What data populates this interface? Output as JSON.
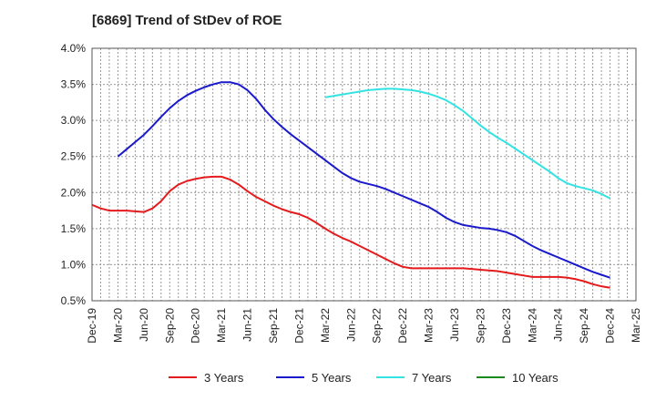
{
  "chart_data": {
    "type": "line",
    "title": "[6869]  Trend of StDev of ROE",
    "y_ticks": [
      "0.5%",
      "1.0%",
      "1.5%",
      "2.0%",
      "2.5%",
      "3.0%",
      "3.5%",
      "4.0%"
    ],
    "ylim": [
      0.5,
      4.0
    ],
    "x_ticks": [
      "Dec-19",
      "Mar-20",
      "Jun-20",
      "Sep-20",
      "Dec-20",
      "Mar-21",
      "Jun-21",
      "Sep-21",
      "Dec-21",
      "Mar-22",
      "Jun-22",
      "Sep-22",
      "Dec-22",
      "Mar-23",
      "Jun-23",
      "Sep-23",
      "Dec-23",
      "Mar-24",
      "Jun-24",
      "Sep-24",
      "Dec-24",
      "Mar-25"
    ],
    "grid": true,
    "legend_position": "bottom",
    "series": [
      {
        "name": "3 Years",
        "color": "#e41a1c",
        "x": [
          "Dec-19",
          "Jan-20",
          "Feb-20",
          "Mar-20",
          "Apr-20",
          "May-20",
          "Jun-20",
          "Jul-20",
          "Aug-20",
          "Sep-20",
          "Oct-20",
          "Nov-20",
          "Dec-20",
          "Jan-21",
          "Feb-21",
          "Mar-21",
          "Apr-21",
          "May-21",
          "Jun-21",
          "Jul-21",
          "Aug-21",
          "Sep-21",
          "Oct-21",
          "Nov-21",
          "Dec-21",
          "Jan-22",
          "Feb-22",
          "Mar-22",
          "Apr-22",
          "May-22",
          "Jun-22",
          "Jul-22",
          "Aug-22",
          "Sep-22",
          "Oct-22",
          "Nov-22",
          "Dec-22",
          "Jan-23",
          "Feb-23",
          "Mar-23",
          "Apr-23",
          "May-23",
          "Jun-23",
          "Jul-23",
          "Aug-23",
          "Sep-23",
          "Oct-23",
          "Nov-23",
          "Dec-23",
          "Jan-24",
          "Feb-24",
          "Mar-24",
          "Apr-24",
          "May-24",
          "Jun-24",
          "Jul-24",
          "Aug-24",
          "Sep-24",
          "Oct-24",
          "Nov-24",
          "Dec-24"
        ],
        "values": [
          1.83,
          1.78,
          1.75,
          1.75,
          1.75,
          1.74,
          1.73,
          1.78,
          1.88,
          2.02,
          2.11,
          2.16,
          2.19,
          2.21,
          2.22,
          2.22,
          2.18,
          2.11,
          2.02,
          1.94,
          1.88,
          1.82,
          1.77,
          1.73,
          1.7,
          1.65,
          1.58,
          1.5,
          1.43,
          1.37,
          1.32,
          1.26,
          1.2,
          1.14,
          1.08,
          1.02,
          0.97,
          0.95,
          0.95,
          0.95,
          0.95,
          0.95,
          0.95,
          0.95,
          0.94,
          0.93,
          0.92,
          0.91,
          0.89,
          0.87,
          0.85,
          0.83,
          0.83,
          0.83,
          0.83,
          0.82,
          0.8,
          0.77,
          0.73,
          0.7,
          0.68
        ]
      },
      {
        "name": "5 Years",
        "color": "#1a1acc",
        "x": [
          "Mar-20",
          "Apr-20",
          "May-20",
          "Jun-20",
          "Jul-20",
          "Aug-20",
          "Sep-20",
          "Oct-20",
          "Nov-20",
          "Dec-20",
          "Jan-21",
          "Feb-21",
          "Mar-21",
          "Apr-21",
          "May-21",
          "Jun-21",
          "Jul-21",
          "Aug-21",
          "Sep-21",
          "Oct-21",
          "Nov-21",
          "Dec-21",
          "Jan-22",
          "Feb-22",
          "Mar-22",
          "Apr-22",
          "May-22",
          "Jun-22",
          "Jul-22",
          "Aug-22",
          "Sep-22",
          "Oct-22",
          "Nov-22",
          "Dec-22",
          "Jan-23",
          "Feb-23",
          "Mar-23",
          "Apr-23",
          "May-23",
          "Jun-23",
          "Jul-23",
          "Aug-23",
          "Sep-23",
          "Oct-23",
          "Nov-23",
          "Dec-23",
          "Jan-24",
          "Feb-24",
          "Mar-24",
          "Apr-24",
          "May-24",
          "Jun-24",
          "Jul-24",
          "Aug-24",
          "Sep-24",
          "Oct-24",
          "Nov-24",
          "Dec-24"
        ],
        "values": [
          2.5,
          2.6,
          2.7,
          2.8,
          2.92,
          3.05,
          3.17,
          3.27,
          3.35,
          3.41,
          3.46,
          3.5,
          3.53,
          3.53,
          3.5,
          3.42,
          3.3,
          3.15,
          3.02,
          2.91,
          2.81,
          2.72,
          2.63,
          2.54,
          2.45,
          2.36,
          2.27,
          2.2,
          2.15,
          2.12,
          2.09,
          2.05,
          2.0,
          1.95,
          1.9,
          1.85,
          1.8,
          1.73,
          1.65,
          1.59,
          1.55,
          1.53,
          1.51,
          1.5,
          1.48,
          1.45,
          1.4,
          1.33,
          1.26,
          1.2,
          1.15,
          1.1,
          1.05,
          1.0,
          0.95,
          0.9,
          0.86,
          0.82
        ]
      },
      {
        "name": "7 Years",
        "color": "#33e3e3",
        "x": [
          "Mar-22",
          "Apr-22",
          "May-22",
          "Jun-22",
          "Jul-22",
          "Aug-22",
          "Sep-22",
          "Oct-22",
          "Nov-22",
          "Dec-22",
          "Jan-23",
          "Feb-23",
          "Mar-23",
          "Apr-23",
          "May-23",
          "Jun-23",
          "Jul-23",
          "Aug-23",
          "Sep-23",
          "Oct-23",
          "Nov-23",
          "Dec-23",
          "Jan-24",
          "Feb-24",
          "Mar-24",
          "Apr-24",
          "May-24",
          "Jun-24",
          "Jul-24",
          "Aug-24",
          "Sep-24",
          "Oct-24",
          "Nov-24",
          "Dec-24"
        ],
        "values": [
          3.32,
          3.34,
          3.36,
          3.38,
          3.4,
          3.42,
          3.43,
          3.44,
          3.44,
          3.43,
          3.42,
          3.4,
          3.37,
          3.33,
          3.28,
          3.21,
          3.13,
          3.03,
          2.93,
          2.84,
          2.76,
          2.69,
          2.61,
          2.53,
          2.45,
          2.37,
          2.29,
          2.2,
          2.13,
          2.09,
          2.06,
          2.03,
          1.98,
          1.92
        ]
      },
      {
        "name": "10 Years",
        "color": "#1a8a1a",
        "x": [],
        "values": []
      }
    ]
  }
}
